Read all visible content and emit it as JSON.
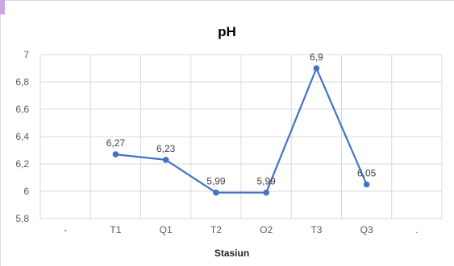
{
  "chart_data": {
    "type": "line",
    "title": "pH",
    "xlabel": "Stasiun",
    "ylabel": "",
    "categories": [
      "T1",
      "Q1",
      "T2",
      "O2",
      "T3",
      "Q3"
    ],
    "x_edge_labels": [
      "-",
      "."
    ],
    "values": [
      6.27,
      6.23,
      5.99,
      5.99,
      6.9,
      6.05
    ],
    "data_labels": [
      "6,27",
      "6,23",
      "5,99",
      "5,99",
      "6,9",
      "6,05"
    ],
    "ylim": [
      5.8,
      7
    ],
    "y_ticks": [
      5.8,
      6,
      6.2,
      6.4,
      6.6,
      6.8,
      7
    ],
    "y_tick_labels": [
      "5,8",
      "6",
      "6,2",
      "6,4",
      "6,6",
      "6,8",
      "7"
    ],
    "grid": true,
    "legend": "none",
    "color": "#4472c4"
  }
}
